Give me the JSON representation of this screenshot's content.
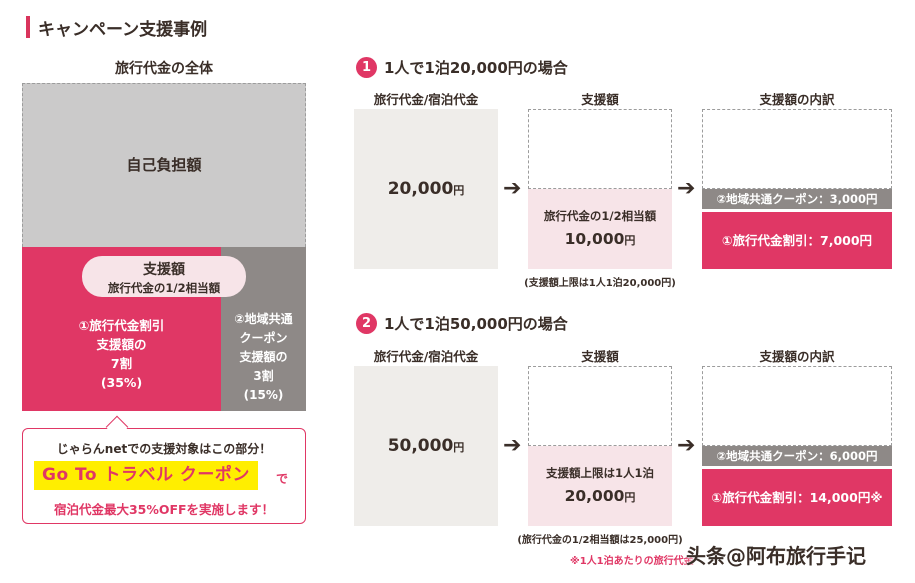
{
  "header": {
    "title": "キャンペーン支援事例"
  },
  "overview": {
    "title": "旅行代金の全体",
    "self_pay": "自己負担額",
    "support_title": "支援額",
    "support_sub": "旅行代金の1/2相当額",
    "discount": [
      "①旅行代金割引",
      "支援額の",
      "7割",
      "(35%)"
    ],
    "coupon": [
      "②地域共通",
      "クーポン",
      "支援額の",
      "3割",
      "(15%)"
    ],
    "callout_line1": "じゃらんnetでの支援対象はこの部分！",
    "gototravel": "Go To トラベル クーポン",
    "callout_de": "で",
    "callout_line3": "宿泊代金最大35%OFFを実施します！"
  },
  "case1": {
    "num": "1",
    "title": "1人で1泊20,000円の場合",
    "col_price": "旅行代金/宿泊代金",
    "col_support": "支援額",
    "col_breakdown": "支援額の内訳",
    "price": "20,000",
    "yen": "円",
    "support_label": "旅行代金の1/2相当額",
    "support_value": "10,000",
    "note": "(支援額上限は1人1泊20,000円)",
    "coupon": "②地域共通クーポン：3,000円",
    "discount": "①旅行代金割引：7,000円"
  },
  "case2": {
    "num": "2",
    "title": "1人で1泊50,000円の場合",
    "col_price": "旅行代金/宿泊代金",
    "col_support": "支援額",
    "col_breakdown": "支援額の内訳",
    "price": "50,000",
    "yen": "円",
    "support_label": "支援額上限は1人1泊",
    "support_value": "20,000",
    "note": "(旅行代金の1/2相当額は25,000円)",
    "coupon": "②地域共通クーポン：6,000円",
    "discount": "①旅行代金割引：14,000円※"
  },
  "arrow": "➔",
  "footnote": "※1人1泊あたりの旅行代金",
  "watermark": "头条@阿布旅行手记",
  "colors": {
    "accent": "#e03765",
    "grey": "#8e8987",
    "light_pink": "#f7e4e8",
    "beige": "#efedea"
  }
}
